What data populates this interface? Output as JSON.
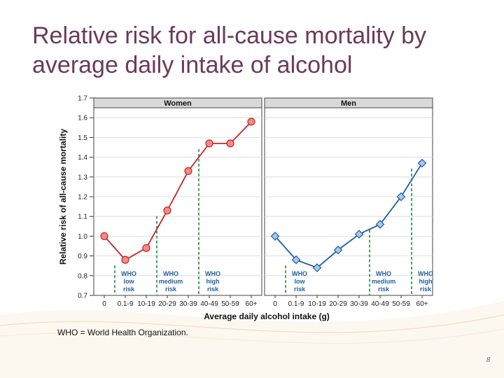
{
  "title": {
    "line1": "Relative risk for all-cause mortality by",
    "line2": "average daily intake of alcohol"
  },
  "footnote": "WHO = World Health Organization.",
  "page_number": "8",
  "colors": {
    "title": "#6b3a5a",
    "women_line": "#c1272d",
    "women_marker": "#f28b82",
    "men_line": "#1f5f9e",
    "men_marker": "#a9c8ec",
    "who_lines": "#1e8a3a",
    "who_text": "#1f5f9e",
    "panel_header": "#d9d9d9"
  },
  "chart_data": {
    "type": "line",
    "ylabel": "Relative risk of all-cause mortality",
    "xlabel": "Average daily alcohol intake (g)",
    "ylim": [
      0.7,
      1.7
    ],
    "yticks": [
      "0.7",
      "0.8",
      "0.9",
      "1.0",
      "1.1",
      "1.2",
      "1.3",
      "1.4",
      "1.5",
      "1.6",
      "1.7"
    ],
    "categories": [
      "0",
      "0.1-9",
      "10-19",
      "20-29",
      "30-39",
      "40-49",
      "50-59",
      "60+"
    ],
    "panels": [
      {
        "name": "Women",
        "series": [
          {
            "name": "Women",
            "values": [
              1.0,
              0.88,
              0.94,
              1.13,
              1.33,
              1.47,
              1.47,
              1.58
            ]
          }
        ],
        "thresholds": [
          {
            "after_category": "0",
            "label": [
              "WHO",
              "low",
              "risk"
            ]
          },
          {
            "after_category": "10-19",
            "label": [
              "WHO",
              "medium",
              "risk"
            ]
          },
          {
            "after_category": "30-39",
            "label": [
              "WHO",
              "high",
              "risk"
            ]
          }
        ]
      },
      {
        "name": "Men",
        "series": [
          {
            "name": "Men",
            "values": [
              1.0,
              0.88,
              0.84,
              0.93,
              1.01,
              1.06,
              1.2,
              1.37
            ]
          }
        ],
        "thresholds": [
          {
            "after_category": "0",
            "label": [
              "WHO",
              "low",
              "risk"
            ]
          },
          {
            "after_category": "30-39",
            "label": [
              "WHO",
              "medium",
              "risk"
            ]
          },
          {
            "after_category": "50-59",
            "label": [
              "WHO",
              "high",
              "risk"
            ]
          }
        ]
      }
    ]
  }
}
